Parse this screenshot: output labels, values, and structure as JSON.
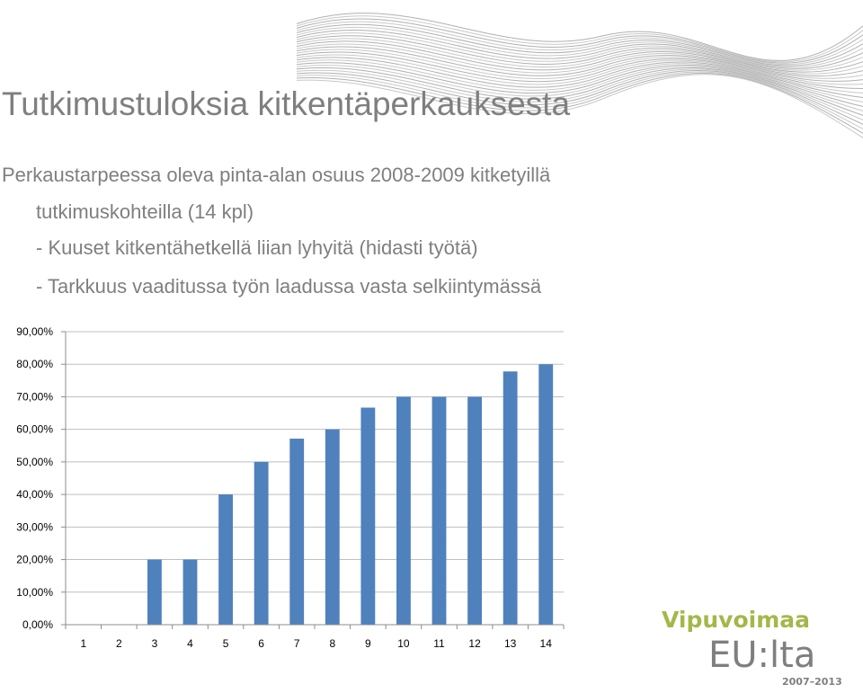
{
  "slide": {
    "title": "Tutkimustuloksia kitkentäperkauksesta",
    "line1": "Perkaustarpeessa oleva pinta-alan osuus 2008-2009 kitketyillä",
    "line2": "tutkimuskohteilla (14 kpl)",
    "line3": "- Kuuset kitkentähetkellä liian lyhyitä (hidasti työtä)",
    "line4": "- Tarkkuus vaaditussa työn laadussa vasta selkiintymässä"
  },
  "chart_data": {
    "type": "bar",
    "categories": [
      "1",
      "2",
      "3",
      "4",
      "5",
      "6",
      "7",
      "8",
      "9",
      "10",
      "11",
      "12",
      "13",
      "14"
    ],
    "values": [
      0,
      0,
      20,
      20,
      40,
      50,
      57.14,
      60,
      66.67,
      70,
      70,
      70,
      77.78,
      80
    ],
    "ytick_labels": [
      "0,00%",
      "10,00%",
      "20,00%",
      "30,00%",
      "40,00%",
      "50,00%",
      "60,00%",
      "70,00%",
      "80,00%",
      "90,00%"
    ],
    "ylim": [
      0,
      90
    ],
    "grid": true,
    "bar_color": "#4f81bd",
    "title": "",
    "xlabel": "",
    "ylabel": ""
  },
  "logo": {
    "line1": "Vipuvoimaa",
    "line2": "EU:lta",
    "years": "2007–2013"
  }
}
